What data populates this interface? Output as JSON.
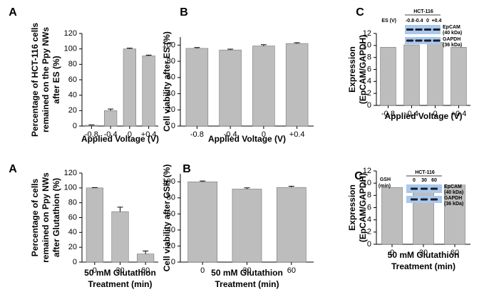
{
  "chart_data": [
    {
      "type": "bar",
      "panel_label": "A",
      "y_label": [
        "Percentage of HCT-116 cells",
        "remained on the Ppy NWs",
        "after ES (%)"
      ],
      "x_label": [
        "Applied Voltage (V)"
      ],
      "categories": [
        "-0.8",
        "-0.4",
        "0",
        "+0.4"
      ],
      "values": [
        1,
        20,
        100,
        91
      ],
      "errors": [
        0.5,
        2,
        1,
        1
      ],
      "color": "#bdbdbd",
      "ylim": [
        0,
        120
      ],
      "yticks": [
        0,
        20,
        40,
        60,
        80,
        100,
        120
      ]
    },
    {
      "type": "bar",
      "panel_label": "B",
      "y_label": [
        "Cell viability after ES (%)"
      ],
      "x_label": [
        "Applied Voltage (V)"
      ],
      "categories": [
        "-0.8",
        "-0.4",
        "0",
        "+0.4"
      ],
      "values": [
        96,
        94,
        99,
        102
      ],
      "errors": [
        1,
        1,
        1.5,
        1
      ],
      "color": "#bdbdbd",
      "ylim": [
        0,
        110
      ],
      "yticks": [
        0,
        20,
        40,
        60,
        80,
        100
      ]
    },
    {
      "type": "bar",
      "panel_label": "C",
      "y_label": [
        "Expression",
        "(EpCAM/GAPDH)"
      ],
      "x_label": [
        "Applied Voltage (V)"
      ],
      "categories": [
        "-0.8",
        "-0.4",
        "0",
        "+0.4"
      ],
      "values": [
        9.7,
        10.1,
        10.5,
        9.7
      ],
      "color": "#bdbdbd",
      "ylim": [
        0,
        12
      ],
      "yticks": [
        0,
        2,
        4,
        6,
        8,
        10,
        12
      ],
      "inset": {
        "title": "HCT-116",
        "row_label": [
          "ES (V)"
        ],
        "lanes": [
          "-0.8",
          "-0.4",
          "0",
          "+0.4"
        ],
        "bands": [
          [
            "EpCAM",
            "(40 kDa)"
          ],
          [
            "GAPDH",
            "(36 kDa)"
          ]
        ]
      }
    },
    {
      "type": "bar",
      "panel_label": "A",
      "y_label": [
        "Percentage of cells",
        "remained on Ppy NWs",
        "after Glutathion (%)"
      ],
      "x_label": [
        "50 mM Glutathion",
        "Treatment (min)"
      ],
      "categories": [
        "0",
        "30",
        "60"
      ],
      "values": [
        100,
        68,
        11
      ],
      "errors": [
        0.5,
        6,
        4
      ],
      "color": "#bdbdbd",
      "ylim": [
        0,
        120
      ],
      "yticks": [
        0,
        20,
        40,
        60,
        80,
        100,
        120
      ]
    },
    {
      "type": "bar",
      "panel_label": "B",
      "y_label": [
        "Cell viability after GSH (%)"
      ],
      "x_label": [
        "50 mM Glutathion",
        "Treatment (min)"
      ],
      "categories": [
        "0",
        "30",
        "60"
      ],
      "values": [
        100,
        91,
        93
      ],
      "errors": [
        1,
        1.5,
        1.5
      ],
      "color": "#bdbdbd",
      "ylim": [
        0,
        110
      ],
      "yticks": [
        0,
        20,
        40,
        60,
        80,
        100
      ]
    },
    {
      "type": "bar",
      "panel_label": "C",
      "y_label": [
        "Expression",
        "(EpCAM/GAPDH)"
      ],
      "x_label": [
        "50 mM Glutathion",
        "Treatment (min)"
      ],
      "categories": [
        "0",
        "30",
        "60"
      ],
      "values": [
        9.3,
        9.7,
        9.7
      ],
      "color": "#bdbdbd",
      "ylim": [
        0,
        12
      ],
      "yticks": [
        0,
        2,
        4,
        6,
        8,
        10,
        12
      ],
      "inset": {
        "title": "HCT-116",
        "row_label": [
          "GSH",
          "(min)"
        ],
        "lanes": [
          "0",
          "30",
          "60"
        ],
        "bands": [
          [
            "EpCAM",
            "(40 kDa)"
          ],
          [
            "GAPDH",
            "(36 kDa)"
          ]
        ]
      }
    }
  ]
}
